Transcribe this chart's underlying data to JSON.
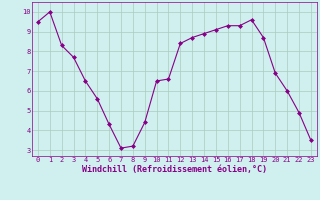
{
  "x": [
    0,
    1,
    2,
    3,
    4,
    5,
    6,
    7,
    8,
    9,
    10,
    11,
    12,
    13,
    14,
    15,
    16,
    17,
    18,
    19,
    20,
    21,
    22,
    23
  ],
  "y": [
    9.5,
    10.0,
    8.3,
    7.7,
    6.5,
    5.6,
    4.3,
    3.1,
    3.2,
    4.4,
    6.5,
    6.6,
    8.4,
    8.7,
    8.9,
    9.1,
    9.3,
    9.3,
    9.6,
    8.7,
    6.9,
    6.0,
    4.9,
    3.5
  ],
  "line_color": "#880088",
  "marker": "D",
  "marker_size": 2.0,
  "bg_color": "#cff0ee",
  "grid_color": "#aaccbb",
  "xlabel": "Windchill (Refroidissement éolien,°C)",
  "xlim": [
    -0.5,
    23.5
  ],
  "ylim": [
    2.7,
    10.5
  ],
  "xticks": [
    0,
    1,
    2,
    3,
    4,
    5,
    6,
    7,
    8,
    9,
    10,
    11,
    12,
    13,
    14,
    15,
    16,
    17,
    18,
    19,
    20,
    21,
    22,
    23
  ],
  "yticks": [
    3,
    4,
    5,
    6,
    7,
    8,
    9,
    10
  ],
  "tick_fontsize": 5.0,
  "xlabel_fontsize": 6.0,
  "linewidth": 0.8
}
